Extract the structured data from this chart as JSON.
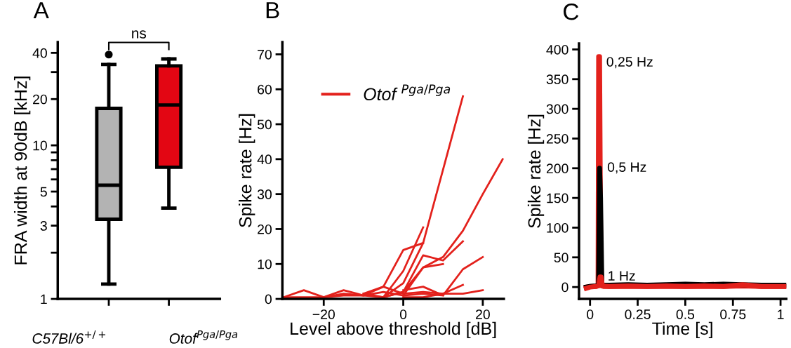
{
  "chart_data": [
    {
      "type": "box",
      "title": "A",
      "ylabel": "FRA width at 90dB [kHz]",
      "log": "y",
      "categories": [
        "C57Bl/6$^{+/+}$",
        "Otof$^{Pga/Pga}$"
      ],
      "colors": [
        "#b3b3b3",
        "#e30613"
      ],
      "boxes": [
        {
          "low": 1.25,
          "q1": 3.3,
          "median": 5.5,
          "q3": 17.4,
          "high": 33.6,
          "outliers": [
            39
          ]
        },
        {
          "low": 3.9,
          "q1": 7.2,
          "median": 18.3,
          "q3": 32.9,
          "high": 36.5
        }
      ],
      "ylim": [
        1,
        47
      ],
      "yticks": [
        1,
        {
          "value": 2,
          "label": null
        },
        3,
        {
          "value": 4,
          "label": null
        },
        5,
        {
          "value": 6,
          "label": null
        },
        {
          "value": 7,
          "label": null
        },
        {
          "value": 8,
          "label": null
        },
        {
          "value": 9,
          "label": null
        },
        10,
        20,
        {
          "value": 30,
          "label": null
        },
        40
      ],
      "annotations": [
        "ns"
      ],
      "grid": false
    },
    {
      "type": "line",
      "title": "B",
      "xlabel": "Level above threshold [dB]",
      "ylabel": "Spike rate [Hz]",
      "xlim": [
        -30.4,
        25.3
      ],
      "ylim": [
        0,
        73.5
      ],
      "xticks": [
        {
          "value": -20,
          "label": "−20"
        },
        0,
        20
      ],
      "yticks": [
        0,
        10,
        20,
        30,
        40,
        50,
        60,
        70
      ],
      "grid": false,
      "legend": "top left",
      "marker": "none",
      "line_style": "solid",
      "series": [
        {
          "name": "Otof $^{Pga/Pga}$",
          "color": "#e3211c",
          "x": [
            -30,
            -25,
            -20,
            -15,
            -10,
            -5,
            0,
            5,
            10,
            15
          ],
          "values": [
            0.5,
            0.5,
            0.5,
            1,
            1,
            0.5,
            4.5,
            16,
            37,
            58
          ]
        },
        {
          "color": "#e3211c",
          "x": [
            -10,
            -5,
            0,
            5,
            10,
            15,
            20,
            25
          ],
          "values": [
            1.5,
            0.5,
            2,
            9,
            12,
            19.5,
            30,
            40
          ]
        },
        {
          "color": "#e3211c",
          "x": [
            -30,
            -25,
            -20,
            -15,
            -10,
            -5,
            0,
            5
          ],
          "values": [
            0.5,
            2.5,
            0.5,
            2.5,
            1,
            3.5,
            14,
            16
          ]
        },
        {
          "color": "#e3211c",
          "x": [
            -5,
            0,
            5
          ],
          "values": [
            0.5,
            8,
            20.5
          ]
        },
        {
          "color": "#e3211c",
          "x": [
            -5,
            0,
            5,
            10,
            15
          ],
          "values": [
            0.5,
            2,
            12.5,
            11,
            16.5
          ]
        },
        {
          "color": "#e3211c",
          "x": [
            0,
            5,
            10
          ],
          "values": [
            1,
            9,
            10
          ]
        },
        {
          "color": "#e3211c",
          "x": [
            0,
            5,
            10,
            15,
            20
          ],
          "values": [
            2.5,
            3.5,
            1,
            8.5,
            12
          ]
        },
        {
          "color": "#e3211c",
          "x": [
            -10,
            -5,
            0,
            5,
            10,
            15
          ],
          "values": [
            1.5,
            3.5,
            1.5,
            2,
            1.5,
            4
          ]
        },
        {
          "color": "#e3211c",
          "x": [
            0,
            5,
            10,
            15,
            20
          ],
          "values": [
            0.5,
            0.5,
            1.5,
            1.5,
            2.5
          ]
        },
        {
          "color": "#e3211c",
          "x": [
            -20,
            -15,
            -10,
            -5,
            0,
            5,
            10
          ],
          "values": [
            0.5,
            1.5,
            1,
            2,
            1,
            1.5,
            1
          ]
        }
      ]
    },
    {
      "type": "line",
      "title": "C",
      "xlabel": "Time [s]",
      "ylabel": "Spike rate [Hz]",
      "xlim": [
        -0.058,
        1.03
      ],
      "ylim": [
        -20,
        410
      ],
      "xticks": [
        0,
        0.25,
        0.5,
        0.75,
        1
      ],
      "yticks": [
        0,
        50,
        100,
        150,
        200,
        250,
        300,
        350,
        400
      ],
      "grid": false,
      "legend": false,
      "marker": "none",
      "line_style": "solid",
      "series": [
        {
          "name": "0,25 Hz",
          "color": "#e3211c",
          "x": [
            -0.02,
            0,
            0.03,
            0.042,
            0.045,
            0.05,
            0.055,
            0.06,
            0.07,
            0.1,
            0.2,
            0.3,
            0.4,
            0.5,
            0.6,
            0.7,
            0.8,
            0.9,
            1.03
          ],
          "values": [
            0,
            1,
            1,
            2,
            388,
            388,
            100,
            2,
            1,
            1,
            1,
            1,
            1,
            1,
            1,
            1,
            2,
            1,
            1
          ]
        },
        {
          "name": "0,5 Hz",
          "color": "#000000",
          "x": [
            -0.02,
            0,
            0.03,
            0.045,
            0.05,
            0.055,
            0.062,
            0.07,
            0.1,
            0.2,
            0.3,
            0.4,
            0.5,
            0.6,
            0.7,
            0.8,
            0.9,
            1.03
          ],
          "values": [
            0,
            1,
            2,
            3,
            200,
            150,
            5,
            3,
            3,
            4,
            3,
            4,
            5,
            4,
            5,
            4,
            3,
            3
          ]
        },
        {
          "name": "1 Hz",
          "color": "#e3211c",
          "x": [
            -0.02,
            0,
            0.03,
            0.045,
            0.052,
            0.058,
            0.065,
            0.1,
            0.2,
            0.3,
            0.4,
            0.5,
            0.6,
            0.7,
            0.8,
            0.9,
            1.03
          ],
          "values": [
            -2,
            0,
            1,
            2,
            17,
            17,
            2,
            1,
            2,
            1,
            2,
            1,
            2,
            1,
            4,
            1,
            1
          ]
        }
      ]
    }
  ]
}
